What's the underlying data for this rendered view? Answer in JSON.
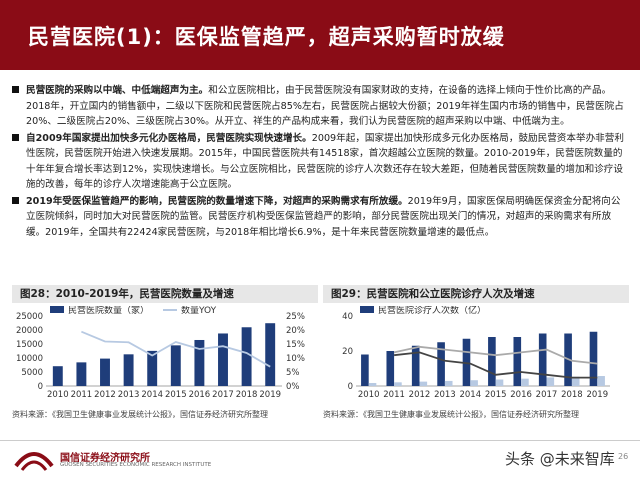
{
  "header": {
    "title": "民营医院(1)：医保监管趋严，超声采购暂时放缓"
  },
  "bullets": [
    {
      "bold": "民营医院的采购以中端、中低端超声为主。",
      "text": "和公立医院相比，由于民营医院没有国家财政的支持，在设备的选择上倾向于性价比高的产品。2018年，开立国内的销售额中，二级以下医院和民营医院占85%左右，民营医院占据较大份额；2019年祥生国内市场的销售中，民营医院占20%、二级医院占20%、三级医院占30%。从开立、祥生的产品构成来看，我们认为民营医院的超声采购以中端、中低端为主。"
    },
    {
      "bold": "自2009年国家提出加快多元化办医格局，民营医院实现快速增长。",
      "text": "2009年起，国家提出加快形成多元化办医格局，鼓励民营资本举办非营利性医院，民营医院开始进入快速发展期。2015年，中国民营医院共有14518家，首次超越公立医院的数量。2010-2019年，民营医院数量的十年年复合增长率达到12%，实现快速增长。与公立医院相比，民营医院的诊疗人次数还存在较大差距，但随着民营医院数量的增加和诊疗设施的改善，每年的诊疗人次增速能高于公立医院。"
    },
    {
      "bold": "2019年受医保监管趋严的影响，民营医院的数量增速下降，对超声的采购需求有所放缓。",
      "text": "2019年9月，国家医保局明确医保资金分配将向公立医院倾斜，同时加大对民营医院的监管。民营医疗机构受医保监管趋严的影响，部分民营医院出现关门的情况，对超声的采购需求有所放缓。2019年，全国共有22424家民营医院，与2018年相比增长6.9%，是十年来民营医院数量增速的最低点。"
    }
  ],
  "chart1_title": "图28：2010-2019年，民营医院数量及增速",
  "chart2_title": "图29：民营医院和公立医院诊疗人次及增速",
  "chart_data": [
    {
      "type": "bar",
      "categories": [
        "2010",
        "2011",
        "2012",
        "2013",
        "2014",
        "2015",
        "2016",
        "2017",
        "2018",
        "2019"
      ],
      "series": [
        {
          "name": "民营医院数量（家）",
          "type": "bar",
          "axis": "left",
          "color": "#1f3d7a",
          "values": [
            7068,
            8440,
            9786,
            11313,
            12546,
            14518,
            16432,
            18759,
            20977,
            22424
          ]
        },
        {
          "name": "数量YOY",
          "type": "line",
          "axis": "right",
          "color": "#b7c9e2",
          "values": [
            null,
            19.4,
            15.9,
            15.6,
            10.9,
            15.7,
            13.2,
            14.2,
            11.8,
            6.9
          ]
        }
      ],
      "ylim_left": [
        0,
        25000
      ],
      "yticks_left": [
        "0",
        "5000",
        "10000",
        "15000",
        "20000",
        "25000"
      ],
      "ylim_right": [
        0,
        25
      ],
      "yticks_right": [
        "0%",
        "5%",
        "10%",
        "15%",
        "20%",
        "25%"
      ],
      "legend_position": "top"
    },
    {
      "type": "bar",
      "categories": [
        "2010",
        "2011",
        "2012",
        "2013",
        "2014",
        "2015",
        "2016",
        "2017",
        "2018",
        "2019"
      ],
      "series": [
        {
          "name": "民营医院诊疗人次数（亿）",
          "type": "bar",
          "axis": "left",
          "color": "#1f3d7a",
          "values": [
            18,
            20,
            23,
            25,
            27,
            28,
            28,
            30,
            30,
            31
          ]
        },
        {
          "type": "bar",
          "axis": "left",
          "color": "#b7c9e2",
          "values": [
            1.7,
            2.1,
            2.5,
            2.9,
            3.3,
            3.7,
            4.2,
            4.9,
            5.3,
            5.7
          ]
        },
        {
          "type": "line",
          "axis": "right",
          "color": "#444444",
          "values": [
            null,
            11,
            12,
            9,
            8,
            4,
            5,
            4,
            3,
            3
          ]
        },
        {
          "type": "line",
          "axis": "right",
          "color": "#aaaaaa",
          "values": [
            null,
            12,
            14,
            13,
            12,
            11,
            12,
            13,
            9,
            8
          ]
        }
      ],
      "ylim_left": [
        0,
        40
      ],
      "yticks_left": [
        "0",
        "20",
        "40"
      ],
      "legend_position": "top"
    }
  ],
  "source1": "资料来源：《我国卫生健康事业发展统计公报》，国信证券经济研究所整理",
  "source2": "资料来源：《我国卫生健康事业发展统计公报》，国信证券经济研究所整理",
  "footer": {
    "logo_cn": "国信证券经济研究所",
    "logo_en": "GUOSEN SECURITIES ECONOMIC RESEARCH INSTITUTE",
    "watermark": "头条 @未来智库",
    "page": "26"
  },
  "colors": {
    "brand": "#8a0c16",
    "bar_dark": "#1f3d7a",
    "bar_light": "#b7c9e2"
  }
}
